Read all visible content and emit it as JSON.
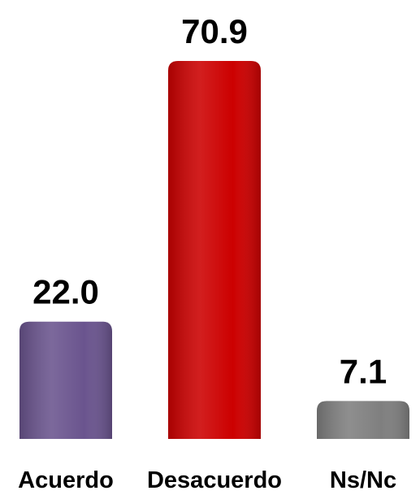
{
  "chart_data": {
    "type": "bar",
    "categories": [
      "Acuerdo",
      "Desacuerdo",
      "Ns/Nc"
    ],
    "values": [
      22.0,
      70.9,
      7.1
    ],
    "value_labels": [
      "22.0",
      "70.9",
      "7.1"
    ],
    "colors": [
      "#6a548e",
      "#cc0000",
      "#7f7f7f"
    ]
  }
}
